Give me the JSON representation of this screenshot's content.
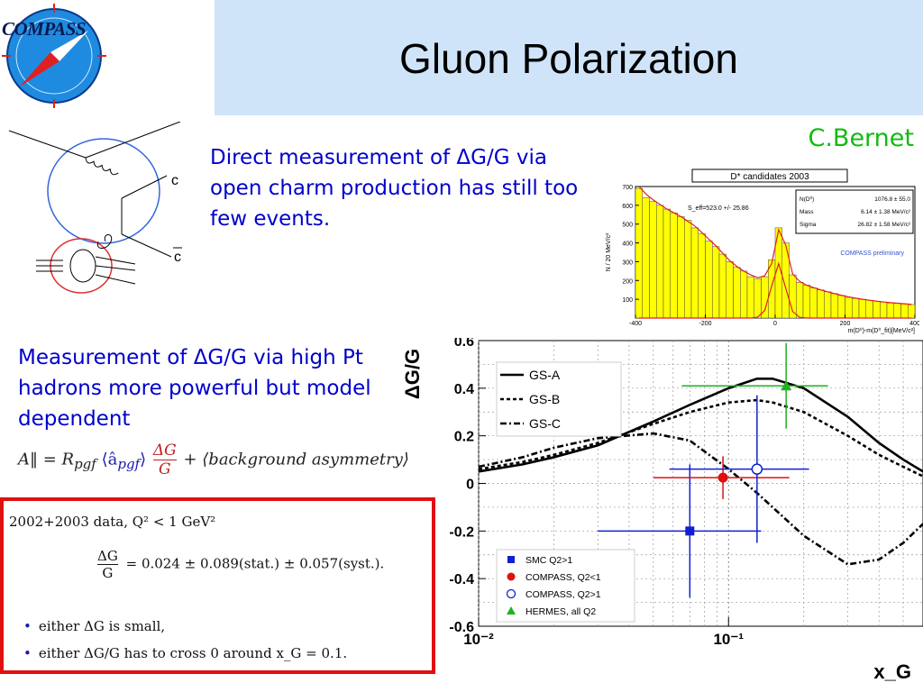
{
  "slide": {
    "title": "Gluon Polarization",
    "logo_text": "COMPASS",
    "author": "C.Bernet",
    "para1": "Direct measurement of ΔG/G via open charm production has still too few events.",
    "para2": "Measurement of ΔG/G via high Pt hadrons more powerful but model dependent",
    "formula_a": {
      "lhs": "A‖ = R",
      "sub": "pgf",
      "bracket": "⟨â",
      "bracket_sub": "pgf",
      "bracket_close": "⟩",
      "num": "ΔG",
      "den": "G",
      "tail": "+ ⟨background asymmetry⟩"
    },
    "result": {
      "line1": "2002+2003 data, Q² < 1 GeV²",
      "num": "ΔG",
      "den": "G",
      "value": "= 0.024 ± 0.089(stat.) ± 0.057(syst.).",
      "bullet1": "either ΔG is small,",
      "bullet2": "either ΔG/G has to cross 0 around x_G = 0.1."
    },
    "feynman": {
      "label_c": "c",
      "label_cbar": "c"
    }
  },
  "chart_data": [
    {
      "type": "bar",
      "title": "D* candidates 2003",
      "ylabel": "N / 20 MeV/c²",
      "xlabel": "m(D⁰)-m(D⁰_fit)[MeV/c²]",
      "xlim": [
        -400,
        400
      ],
      "ylim": [
        0,
        700
      ],
      "xticks": [
        "-400",
        "-200",
        "0",
        "200",
        "400"
      ],
      "yticks": [
        "100",
        "200",
        "300",
        "400",
        "500",
        "600",
        "700"
      ],
      "annotation": "S_eff=523.0 +/- 25.86",
      "stats": [
        {
          "label": "N(D⁰)",
          "value": "1076.8 ± 55.0"
        },
        {
          "label": "Mass",
          "value": "6.14 ± 1.38 MeV/c²"
        },
        {
          "label": "Sigma",
          "value": "26.82 ± 1.58 MeV/c²"
        }
      ],
      "watermark": "COMPASS preliminary",
      "bin_width": 20,
      "x": [
        -400,
        -380,
        -360,
        -340,
        -320,
        -300,
        -280,
        -260,
        -240,
        -220,
        -200,
        -180,
        -160,
        -140,
        -120,
        -100,
        -80,
        -60,
        -40,
        -20,
        0,
        20,
        40,
        60,
        80,
        100,
        120,
        140,
        160,
        180,
        200,
        220,
        240,
        260,
        280,
        300,
        320,
        340,
        360,
        380
      ],
      "values": [
        690,
        640,
        620,
        600,
        580,
        560,
        540,
        520,
        480,
        450,
        410,
        380,
        340,
        300,
        270,
        250,
        220,
        210,
        220,
        310,
        480,
        400,
        230,
        190,
        175,
        160,
        150,
        140,
        130,
        120,
        110,
        105,
        100,
        95,
        90,
        85,
        80,
        78,
        75,
        72
      ],
      "fit": [
        700,
        660,
        630,
        605,
        580,
        560,
        540,
        515,
        490,
        455,
        420,
        385,
        345,
        305,
        275,
        250,
        230,
        215,
        225,
        290,
        470,
        390,
        235,
        195,
        175,
        162,
        150,
        140,
        130,
        121,
        113,
        106,
        100,
        95,
        90,
        86,
        82,
        79,
        76,
        73
      ],
      "signal": [
        0,
        0,
        0,
        0,
        0,
        0,
        0,
        0,
        0,
        0,
        0,
        0,
        0,
        0,
        0,
        0,
        0,
        5,
        40,
        170,
        290,
        160,
        35,
        4,
        0,
        0,
        0,
        0,
        0,
        0,
        0,
        0,
        0,
        0,
        0,
        0,
        0,
        0,
        0,
        0
      ]
    },
    {
      "type": "scatter",
      "ylabel": "ΔG/G",
      "xlabel": "x_G",
      "xscale": "log",
      "xlim": [
        0.01,
        0.6
      ],
      "ylim": [
        -0.6,
        0.6
      ],
      "xticks": [
        "10⁻²",
        "10⁻¹"
      ],
      "yticks": [
        "-0.6",
        "-0.4",
        "-0.2",
        "0",
        "0.2",
        "0.4",
        "0.6"
      ],
      "grid": true,
      "legend_curves": "top-left",
      "legend_points": "bottom-left",
      "curves": [
        {
          "name": "GS-A",
          "style": "solid",
          "x": [
            0.01,
            0.015,
            0.02,
            0.03,
            0.05,
            0.07,
            0.1,
            0.13,
            0.15,
            0.2,
            0.3,
            0.4,
            0.5,
            0.6
          ],
          "y": [
            0.05,
            0.08,
            0.11,
            0.16,
            0.26,
            0.33,
            0.4,
            0.44,
            0.44,
            0.4,
            0.28,
            0.17,
            0.1,
            0.05
          ]
        },
        {
          "name": "GS-B",
          "style": "dashed",
          "x": [
            0.01,
            0.015,
            0.02,
            0.03,
            0.05,
            0.07,
            0.1,
            0.13,
            0.15,
            0.2,
            0.3,
            0.4,
            0.5,
            0.6
          ],
          "y": [
            0.06,
            0.09,
            0.12,
            0.17,
            0.25,
            0.3,
            0.34,
            0.35,
            0.34,
            0.3,
            0.2,
            0.12,
            0.07,
            0.03
          ]
        },
        {
          "name": "GS-C",
          "style": "dashdot",
          "x": [
            0.01,
            0.015,
            0.02,
            0.03,
            0.05,
            0.07,
            0.1,
            0.13,
            0.15,
            0.2,
            0.3,
            0.4,
            0.5,
            0.6
          ],
          "y": [
            0.07,
            0.11,
            0.15,
            0.19,
            0.21,
            0.18,
            0.06,
            -0.04,
            -0.1,
            -0.22,
            -0.34,
            -0.32,
            -0.25,
            -0.17
          ]
        }
      ],
      "points": [
        {
          "name": "SMC Q2>1",
          "marker": "square",
          "color": "#1020d0",
          "x": 0.07,
          "y": -0.2,
          "yerr": [
            0.28,
            0.28
          ],
          "xerr": [
            0.04,
            0.065
          ]
        },
        {
          "name": "COMPASS, Q2<1",
          "marker": "circle",
          "color": "#e01010",
          "x": 0.095,
          "y": 0.024,
          "yerr": [
            0.09,
            0.09
          ],
          "xerr": [
            0.045,
            0.08
          ]
        },
        {
          "name": "COMPASS, Q2>1",
          "marker": "open-circle",
          "color": "#1020d0",
          "x": 0.13,
          "y": 0.06,
          "yerr": [
            0.31,
            0.31
          ],
          "xerr": [
            0.072,
            0.08
          ]
        },
        {
          "name": "HERMES, all Q2",
          "marker": "triangle",
          "color": "#20b020",
          "x": 0.17,
          "y": 0.41,
          "yerr": [
            0.18,
            0.18
          ],
          "xerr": [
            0.105,
            0.08
          ]
        }
      ]
    }
  ],
  "colors": {
    "header": "#cfe4f8",
    "text_blue": "#0000cc",
    "author_green": "#11bb11",
    "box_red": "#e01010",
    "hist_fill": "#ffff00"
  }
}
